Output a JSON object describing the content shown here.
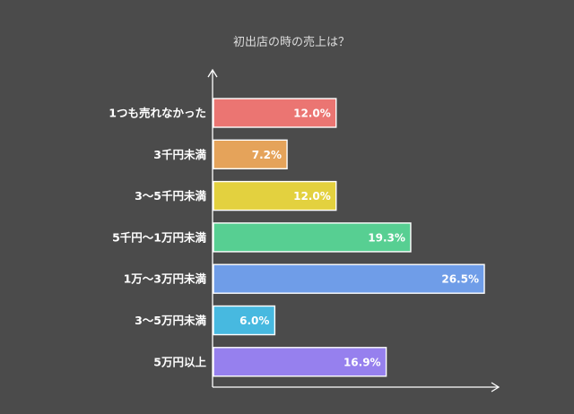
{
  "chart_data": {
    "type": "bar",
    "orientation": "horizontal",
    "title": "初出店の時の売上は？",
    "xlabel": "",
    "ylabel": "",
    "categories": [
      "1つも売れなかった",
      "3千円未満",
      "3～5千円未満",
      "5千円～1万円未満",
      "1万～3万円未満",
      "3～5万円未満",
      "5万円以上"
    ],
    "values": [
      12.0,
      7.2,
      12.0,
      19.3,
      26.5,
      6.0,
      16.9
    ],
    "value_labels": [
      "12.0%",
      "7.2%",
      "12.0%",
      "19.3%",
      "26.5%",
      "6.0%",
      "16.9%"
    ],
    "colors": [
      "#eb7572",
      "#e5a35a",
      "#e3d13f",
      "#57cf92",
      "#6f9de8",
      "#47b9e0",
      "#9680ee"
    ],
    "xlim": [
      0,
      26.5
    ],
    "grid": false,
    "legend": "none"
  }
}
